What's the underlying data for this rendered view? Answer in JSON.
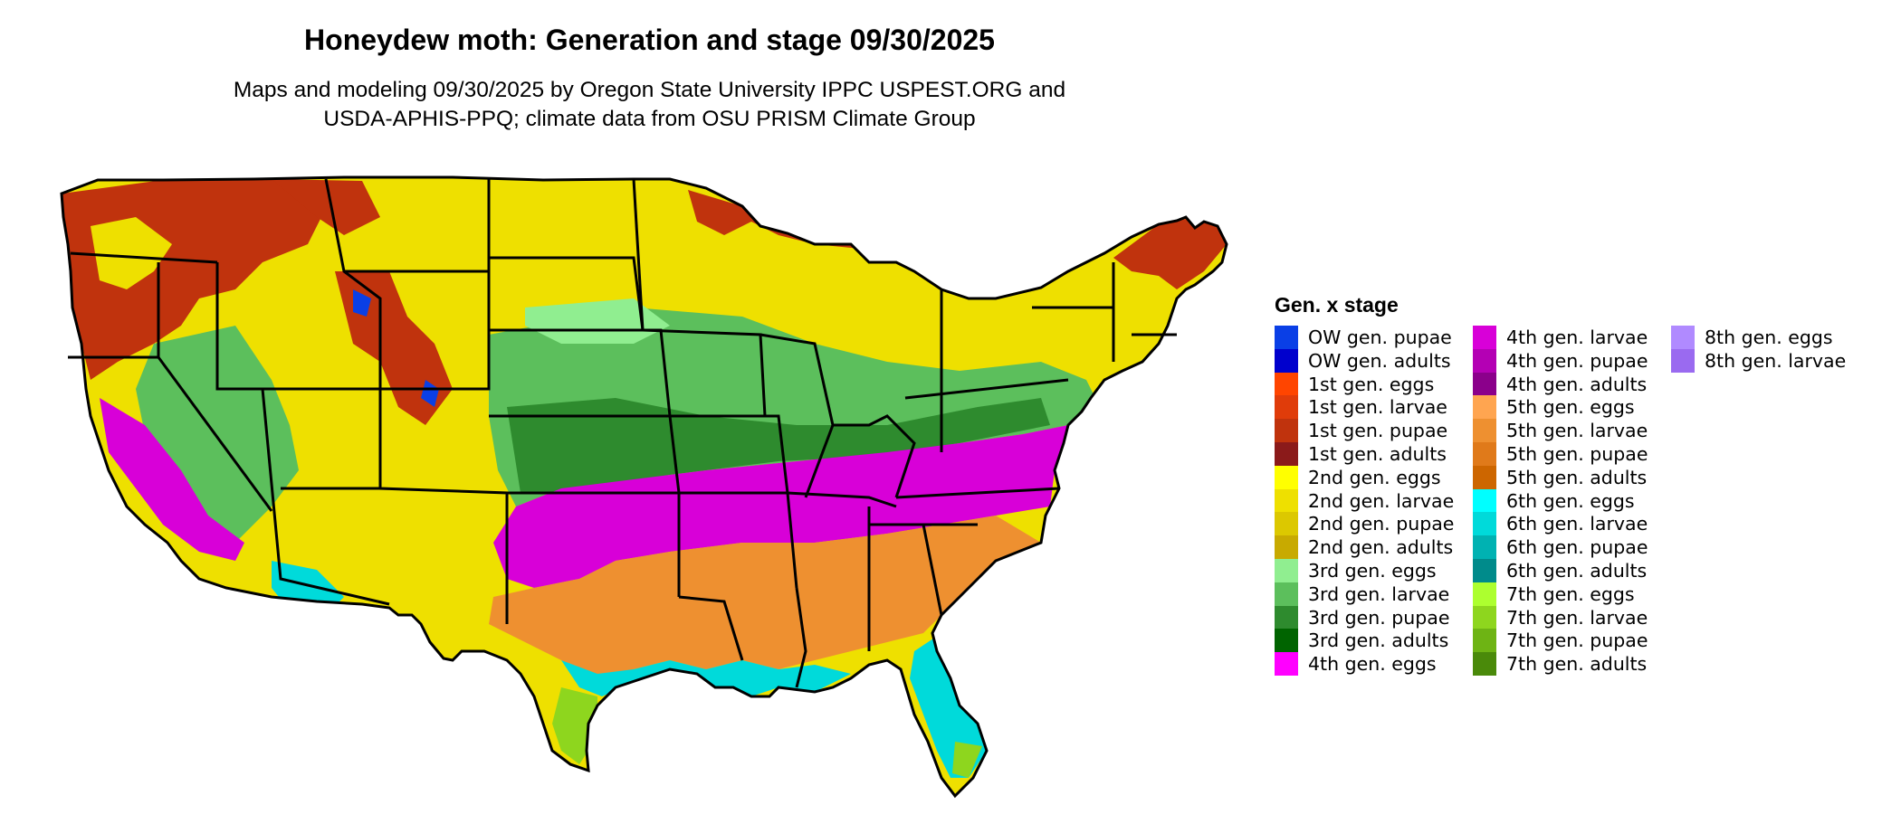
{
  "title": "Honeydew moth: Generation and stage 09/30/2025",
  "subtitle_line1": "Maps and modeling 09/30/2025 by Oregon State University IPPC USPEST.ORG and",
  "subtitle_line2": "USDA-APHIS-PPQ; climate data from OSU PRISM Climate Group",
  "legend": {
    "title": "Gen. x stage",
    "items": [
      {
        "label": "OW gen. pupae",
        "color": "#0a3fe6"
      },
      {
        "label": "OW gen. adults",
        "color": "#0000cd"
      },
      {
        "label": "1st gen. eggs",
        "color": "#ff4500"
      },
      {
        "label": "1st gen. larvae",
        "color": "#e03c0a"
      },
      {
        "label": "1st gen. pupae",
        "color": "#c0330d"
      },
      {
        "label": "1st gen. adults",
        "color": "#8b1a1a"
      },
      {
        "label": "2nd gen. eggs",
        "color": "#ffff00"
      },
      {
        "label": "2nd gen. larvae",
        "color": "#eee000"
      },
      {
        "label": "2nd gen. pupae",
        "color": "#dcc800"
      },
      {
        "label": "2nd gen. adults",
        "color": "#c8aa00"
      },
      {
        "label": "3rd gen. eggs",
        "color": "#90ee90"
      },
      {
        "label": "3rd gen. larvae",
        "color": "#5cbf5c"
      },
      {
        "label": "3rd gen. pupae",
        "color": "#2e8b2e"
      },
      {
        "label": "3rd gen. adults",
        "color": "#006400"
      },
      {
        "label": "4th gen. eggs",
        "color": "#ff00ff"
      },
      {
        "label": "4th gen. larvae",
        "color": "#d800d8"
      },
      {
        "label": "4th gen. pupae",
        "color": "#b400b4"
      },
      {
        "label": "4th gen. adults",
        "color": "#8b008b"
      },
      {
        "label": "5th gen. eggs",
        "color": "#ffa550"
      },
      {
        "label": "5th gen. larvae",
        "color": "#ee9030"
      },
      {
        "label": "5th gen. pupae",
        "color": "#e07a1a"
      },
      {
        "label": "5th gen. adults",
        "color": "#cd6600"
      },
      {
        "label": "6th gen. eggs",
        "color": "#00ffff"
      },
      {
        "label": "6th gen. larvae",
        "color": "#00dada"
      },
      {
        "label": "6th gen. pupae",
        "color": "#00b2b2"
      },
      {
        "label": "6th gen. adults",
        "color": "#008b8b"
      },
      {
        "label": "7th gen. eggs",
        "color": "#adff2f"
      },
      {
        "label": "7th gen. larvae",
        "color": "#8ed61e"
      },
      {
        "label": "7th gen. pupae",
        "color": "#6eb414"
      },
      {
        "label": "7th gen. adults",
        "color": "#4a8a0a"
      },
      {
        "label": "8th gen. eggs",
        "color": "#b08aff"
      },
      {
        "label": "8th gen. larvae",
        "color": "#9a6af0"
      }
    ]
  }
}
